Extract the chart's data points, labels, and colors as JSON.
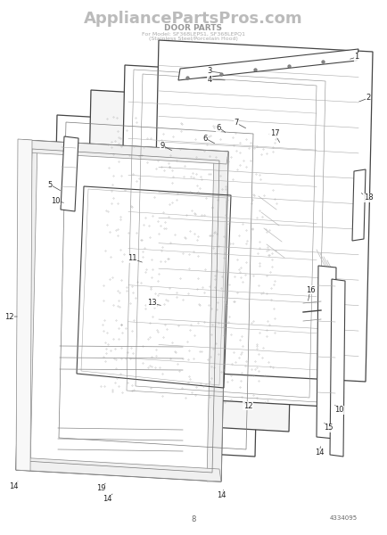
{
  "title": "DOOR PARTS",
  "watermark": "AppliancePartsPros.com",
  "subtitle_line1": "For Model: SF368LEPS1, SF368LEPQ1",
  "subtitle_line2": "(Stainless Steel/Porcelain Hood)",
  "page_number": "8",
  "part_number": "4334095",
  "bg_color": "#ffffff",
  "line_color": "#444444",
  "watermark_color": "#bbbbbb",
  "title_overlay_color": "#999999"
}
